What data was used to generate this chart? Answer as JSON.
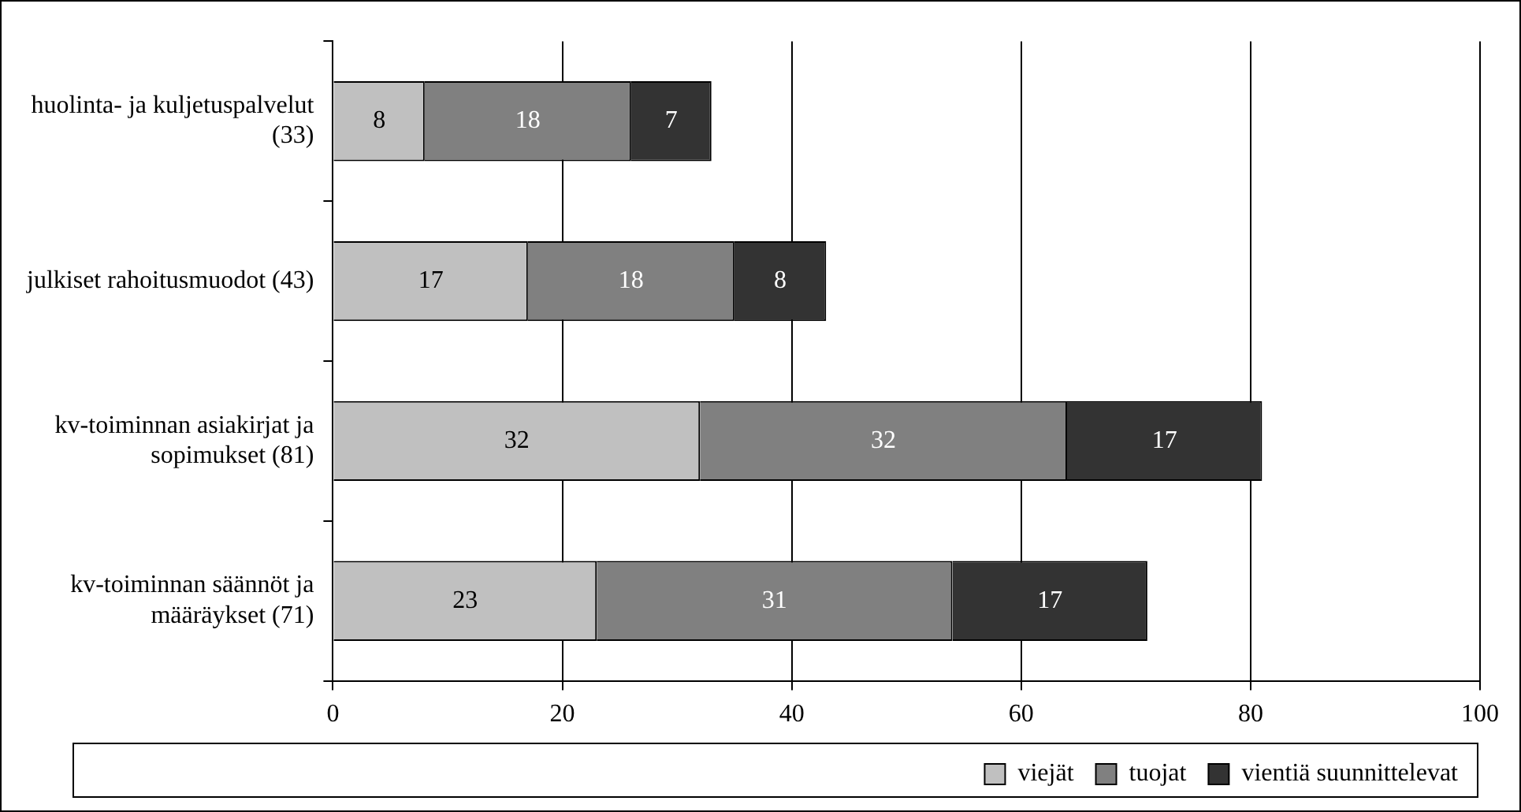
{
  "chart_data": {
    "type": "bar",
    "orientation": "horizontal",
    "stacked": true,
    "categories": [
      "huolinta- ja kuljetuspalvelut (33)",
      "julkiset rahoitusmuodot (43)",
      "kv-toiminnan asiakirjat ja sopimukset (81)",
      "kv-toiminnan säännöt ja määräykset (71)"
    ],
    "series": [
      {
        "name": "viejät",
        "color": "#c0c0c0",
        "values": [
          8,
          17,
          32,
          23
        ]
      },
      {
        "name": "tuojat",
        "color": "#808080",
        "values": [
          18,
          18,
          32,
          31
        ]
      },
      {
        "name": "vientiä suunnittelevat",
        "color": "#333333",
        "values": [
          7,
          8,
          17,
          17
        ]
      }
    ],
    "xlim": [
      0,
      100
    ],
    "xticks": [
      0,
      20,
      40,
      60,
      80,
      100
    ],
    "grid": "x",
    "legend": "bottom",
    "data_labels": true
  }
}
